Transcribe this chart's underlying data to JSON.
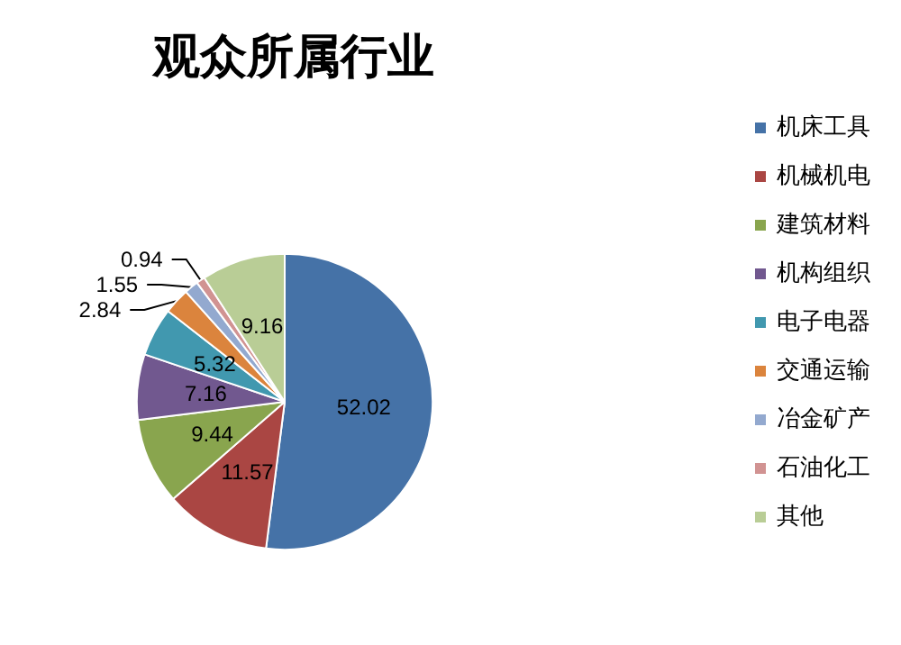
{
  "chart_data": {
    "type": "pie",
    "title": "观众所属行业",
    "categories": [
      "机床工具",
      "机械机电",
      "建筑材料",
      "机构组织",
      "电子电器",
      "交通运输",
      "冶金矿产",
      "石油化工",
      "其他"
    ],
    "values": [
      52.02,
      11.57,
      9.44,
      7.16,
      5.32,
      2.84,
      1.55,
      0.94,
      9.16
    ],
    "colors": [
      "#4572a7",
      "#aa4643",
      "#89a54e",
      "#71588f",
      "#4198af",
      "#db843d",
      "#93a9cf",
      "#d19392",
      "#b9cd96"
    ],
    "data_labels": true,
    "legend": "right"
  }
}
